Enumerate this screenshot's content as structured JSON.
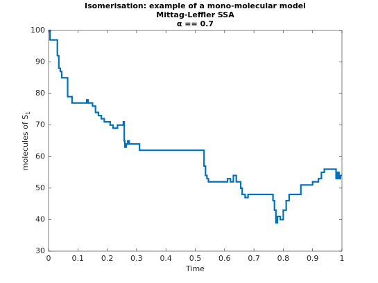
{
  "chart_data": {
    "type": "stairs",
    "title": [
      "Isomerisation:  example of a mono-molecular model",
      "Mittag-Leffler  SSA",
      "α == 0.7"
    ],
    "xlabel": "Time",
    "ylabel": "molecules of S",
    "ylabel_subscript": "1",
    "color": "#0072bd",
    "xlim": [
      0,
      1
    ],
    "ylim": [
      30,
      100
    ],
    "xticks": [
      0,
      0.1,
      0.2,
      0.3,
      0.4,
      0.5,
      0.6,
      0.7,
      0.8,
      0.9,
      1
    ],
    "yticks": [
      30,
      40,
      50,
      60,
      70,
      80,
      90,
      100
    ],
    "grid": false,
    "x": [
      0,
      0.005,
      0.03,
      0.035,
      0.04,
      0.045,
      0.065,
      0.08,
      0.13,
      0.135,
      0.15,
      0.16,
      0.17,
      0.18,
      0.19,
      0.21,
      0.22,
      0.235,
      0.255,
      0.258,
      0.26,
      0.265,
      0.27,
      0.275,
      0.31,
      0.53,
      0.535,
      0.54,
      0.545,
      0.61,
      0.62,
      0.63,
      0.64,
      0.655,
      0.66,
      0.67,
      0.68,
      0.69,
      0.765,
      0.77,
      0.775,
      0.78,
      0.79,
      0.8,
      0.81,
      0.82,
      0.86,
      0.9,
      0.92,
      0.93,
      0.94,
      0.98,
      0.985,
      0.99,
      0.995,
      1
    ],
    "values": [
      100,
      97,
      92,
      88,
      87,
      85,
      79,
      77,
      78,
      77,
      76,
      74,
      73,
      72,
      71,
      70,
      69,
      70,
      71,
      65,
      63,
      64,
      65,
      64,
      62,
      57,
      54,
      53,
      52,
      53,
      52,
      54,
      52,
      50,
      48,
      47,
      48,
      48,
      46,
      43,
      39,
      41,
      40,
      43,
      46,
      48,
      51,
      52,
      53,
      55,
      56,
      53,
      55,
      53,
      54,
      54
    ]
  }
}
